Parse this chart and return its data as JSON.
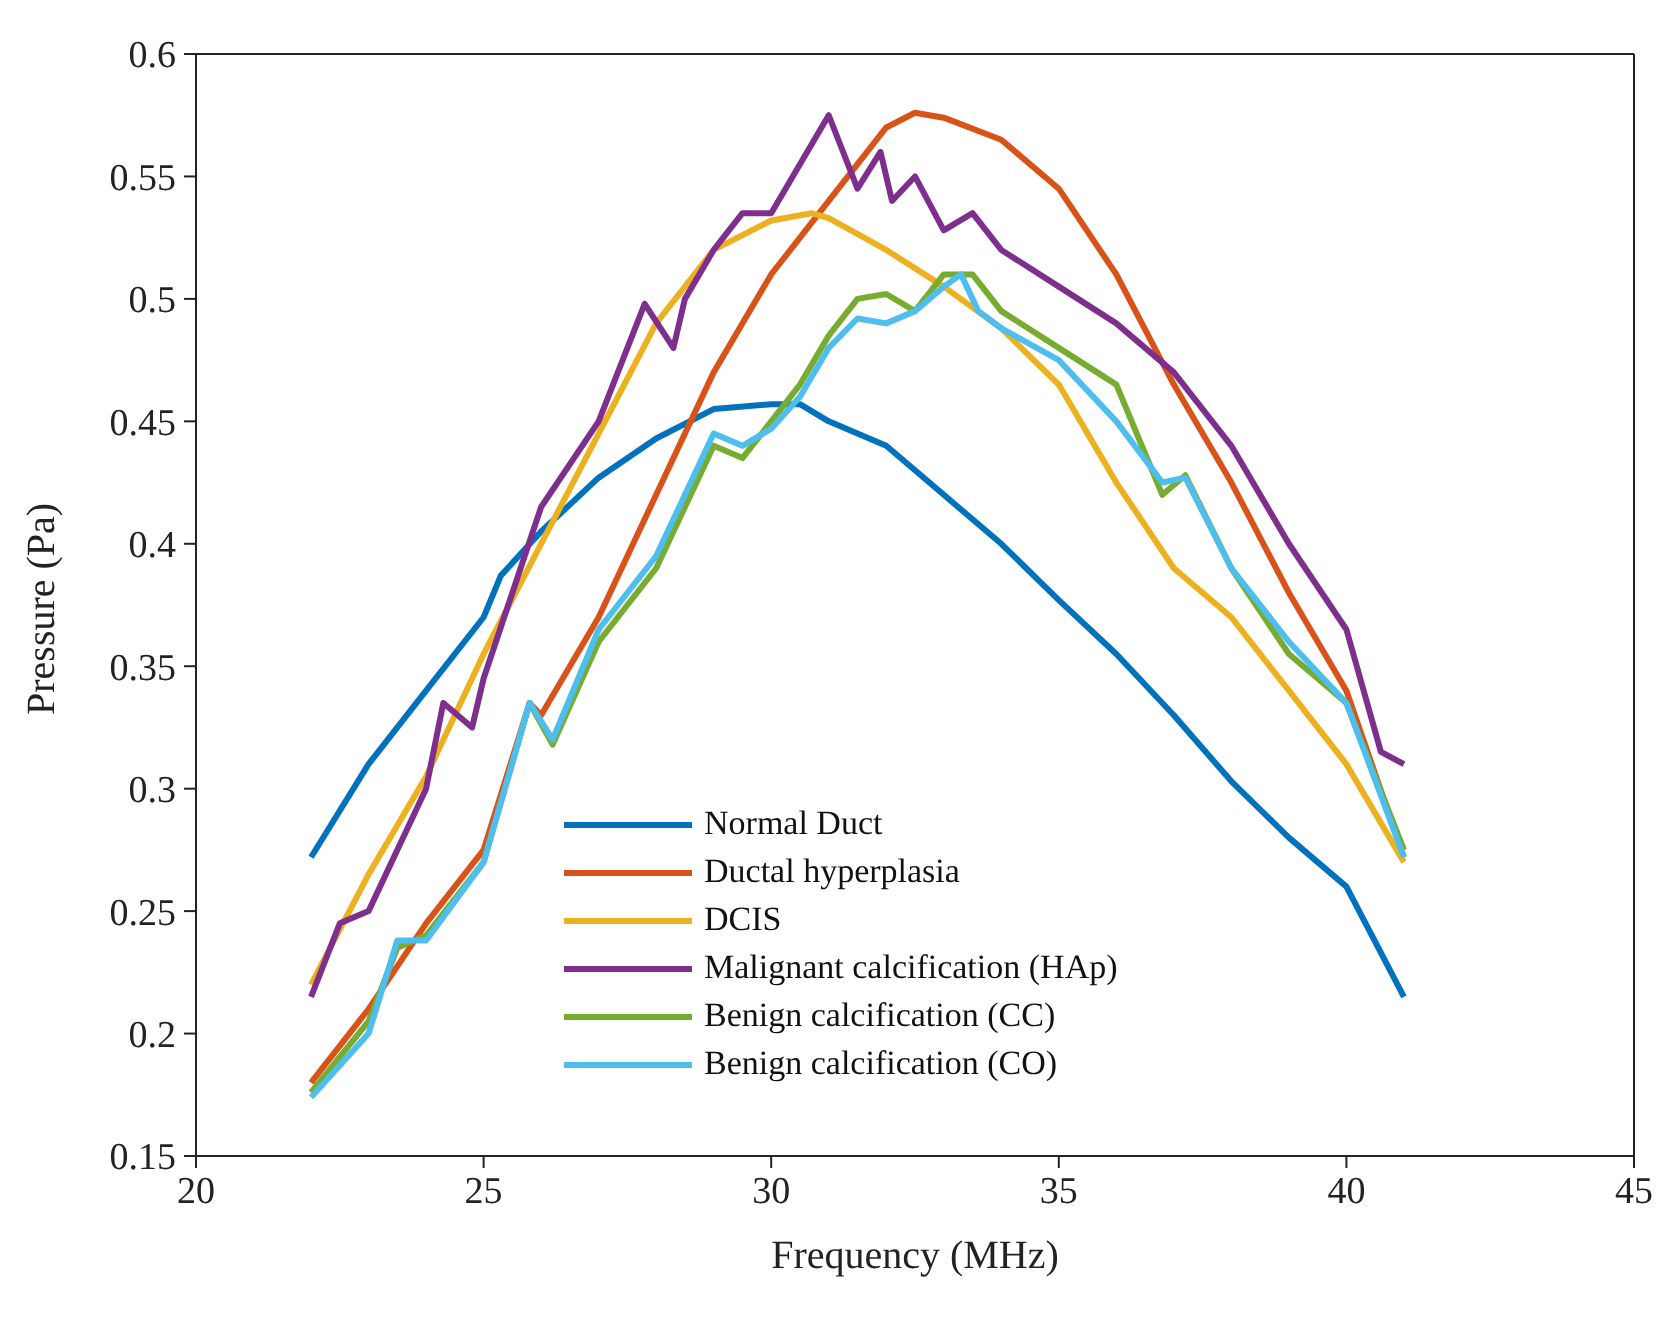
{
  "chart_data": {
    "type": "line",
    "xlabel": "Frequency (MHz)",
    "ylabel": "Pressure (Pa)",
    "xlim": [
      20,
      45
    ],
    "xticks": [
      20,
      25,
      30,
      35,
      40,
      45
    ],
    "ylim": [
      0.15,
      0.6
    ],
    "yticks": [
      0.15,
      0.2,
      0.25,
      0.3,
      0.35,
      0.4,
      0.45,
      0.5,
      0.55,
      0.6
    ],
    "legend": "bottom",
    "line_style": "solid",
    "marker": "none",
    "series": [
      {
        "name": "Normal Duct",
        "color": "#0072bd",
        "x": [
          22,
          23,
          24,
          25,
          25.3,
          26,
          27,
          28,
          29,
          30,
          30.5,
          31,
          32,
          33,
          34,
          35,
          36,
          37,
          38,
          39,
          40,
          41
        ],
        "values": [
          0.272,
          0.31,
          0.34,
          0.37,
          0.387,
          0.405,
          0.427,
          0.443,
          0.455,
          0.457,
          0.457,
          0.45,
          0.44,
          0.42,
          0.4,
          0.377,
          0.355,
          0.33,
          0.303,
          0.28,
          0.26,
          0.215
        ]
      },
      {
        "name": "Ductal hyperplasia",
        "color": "#d95319",
        "x": [
          22,
          23,
          24,
          25,
          25.8,
          26,
          27,
          28,
          29,
          30,
          31,
          32,
          32.5,
          33,
          34,
          35,
          36,
          37,
          38,
          39,
          40,
          41
        ],
        "values": [
          0.18,
          0.21,
          0.245,
          0.275,
          0.335,
          0.33,
          0.37,
          0.42,
          0.47,
          0.51,
          0.54,
          0.57,
          0.576,
          0.574,
          0.565,
          0.545,
          0.51,
          0.465,
          0.425,
          0.38,
          0.34,
          0.272
        ]
      },
      {
        "name": "DCIS",
        "color": "#edb120",
        "x": [
          22,
          23,
          24,
          25,
          26,
          27,
          28,
          29,
          30,
          30.7,
          31,
          32,
          33,
          34,
          35,
          36,
          37,
          38,
          39,
          40,
          41
        ],
        "values": [
          0.22,
          0.265,
          0.305,
          0.355,
          0.4,
          0.445,
          0.49,
          0.52,
          0.532,
          0.535,
          0.533,
          0.52,
          0.505,
          0.488,
          0.465,
          0.425,
          0.39,
          0.37,
          0.34,
          0.31,
          0.27
        ]
      },
      {
        "name": "Malignant calcification (HAp)",
        "color": "#7e2f8e",
        "x": [
          22,
          22.5,
          23,
          24,
          24.3,
          24.8,
          25,
          26,
          27,
          27.8,
          28.3,
          28.5,
          29,
          29.5,
          30,
          30.5,
          31,
          31.5,
          31.9,
          32.1,
          32.5,
          33,
          33.5,
          34,
          35,
          36,
          37,
          38,
          39,
          40,
          40.6,
          41
        ],
        "values": [
          0.215,
          0.245,
          0.25,
          0.3,
          0.335,
          0.325,
          0.345,
          0.415,
          0.45,
          0.498,
          0.48,
          0.5,
          0.52,
          0.535,
          0.535,
          0.555,
          0.575,
          0.545,
          0.56,
          0.54,
          0.55,
          0.528,
          0.535,
          0.52,
          0.505,
          0.49,
          0.47,
          0.44,
          0.4,
          0.365,
          0.315,
          0.31
        ]
      },
      {
        "name": "Benign calcification (CC)",
        "color": "#77ac30",
        "x": [
          22,
          23,
          23.5,
          24,
          25,
          25.8,
          26.2,
          27,
          28,
          29,
          29.5,
          30,
          30.5,
          31,
          31.5,
          32,
          32.5,
          33,
          33.5,
          34,
          35,
          36,
          36.8,
          37.2,
          38,
          39,
          40,
          41
        ],
        "values": [
          0.176,
          0.205,
          0.235,
          0.24,
          0.27,
          0.335,
          0.318,
          0.36,
          0.39,
          0.44,
          0.435,
          0.45,
          0.465,
          0.485,
          0.5,
          0.502,
          0.495,
          0.51,
          0.51,
          0.495,
          0.48,
          0.465,
          0.42,
          0.428,
          0.39,
          0.355,
          0.335,
          0.275
        ]
      },
      {
        "name": "Benign calcification (CO)",
        "color": "#4dbeee",
        "x": [
          22,
          23,
          23.5,
          24,
          25,
          25.8,
          26.2,
          27,
          28,
          29,
          29.5,
          30,
          30.5,
          31,
          31.5,
          32,
          32.5,
          33,
          33.3,
          33.6,
          34,
          35,
          36,
          36.8,
          37.2,
          38,
          39,
          40,
          41
        ],
        "values": [
          0.174,
          0.2,
          0.238,
          0.238,
          0.27,
          0.335,
          0.32,
          0.365,
          0.395,
          0.445,
          0.44,
          0.447,
          0.46,
          0.48,
          0.492,
          0.49,
          0.495,
          0.505,
          0.51,
          0.495,
          0.488,
          0.475,
          0.45,
          0.425,
          0.427,
          0.39,
          0.36,
          0.335,
          0.272
        ]
      }
    ]
  }
}
